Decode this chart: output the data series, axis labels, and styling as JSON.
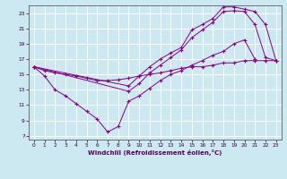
{
  "xlabel": "Windchill (Refroidissement éolien,°C)",
  "background_color": "#cce8f0",
  "grid_color": "#ffffff",
  "line_color": "#880088",
  "xlim": [
    -0.5,
    23.5
  ],
  "ylim": [
    6.5,
    24.0
  ],
  "xticks": [
    0,
    1,
    2,
    3,
    4,
    5,
    6,
    7,
    8,
    9,
    10,
    11,
    12,
    13,
    14,
    15,
    16,
    17,
    18,
    19,
    20,
    21,
    22,
    23
  ],
  "yticks": [
    7,
    9,
    11,
    13,
    15,
    17,
    19,
    21,
    23
  ],
  "curve_bottom_x": [
    0,
    1,
    2,
    3,
    4,
    5,
    6,
    7,
    8,
    9,
    10,
    11,
    12,
    13,
    14,
    15,
    16,
    17,
    18,
    19,
    20,
    21
  ],
  "curve_bottom_y": [
    16.0,
    14.8,
    13.0,
    12.2,
    11.2,
    10.2,
    9.2,
    7.5,
    8.2,
    11.5,
    12.2,
    13.2,
    14.2,
    15.0,
    15.5,
    16.2,
    16.8,
    17.5,
    18.0,
    19.0,
    19.5,
    17.0
  ],
  "curve_mid_x": [
    0,
    9,
    10,
    11,
    12,
    13,
    14,
    15,
    16,
    17,
    18,
    19,
    20,
    21,
    22,
    23
  ],
  "curve_mid_y": [
    16.0,
    12.8,
    13.8,
    15.2,
    16.2,
    17.2,
    18.2,
    19.8,
    20.8,
    21.8,
    23.2,
    23.3,
    23.2,
    21.5,
    17.2,
    16.8
  ],
  "curve_top_x": [
    0,
    9,
    10,
    11,
    12,
    13,
    14,
    15,
    16,
    17,
    18,
    19,
    20,
    21,
    22,
    23
  ],
  "curve_top_y": [
    16.0,
    13.5,
    14.8,
    16.0,
    17.0,
    17.8,
    18.5,
    20.8,
    21.5,
    22.3,
    23.8,
    23.8,
    23.5,
    23.2,
    21.5,
    16.8
  ],
  "curve_flat_x": [
    0,
    1,
    2,
    3,
    4,
    5,
    6,
    7,
    8,
    9,
    10,
    11,
    12,
    13,
    14,
    15,
    16,
    17,
    18,
    19,
    20,
    21,
    22,
    23
  ],
  "curve_flat_y": [
    16.0,
    15.5,
    15.2,
    15.0,
    14.8,
    14.5,
    14.2,
    14.2,
    14.3,
    14.5,
    14.8,
    15.0,
    15.2,
    15.5,
    15.8,
    16.0,
    16.0,
    16.2,
    16.5,
    16.5,
    16.8,
    16.8,
    16.8,
    16.8
  ]
}
